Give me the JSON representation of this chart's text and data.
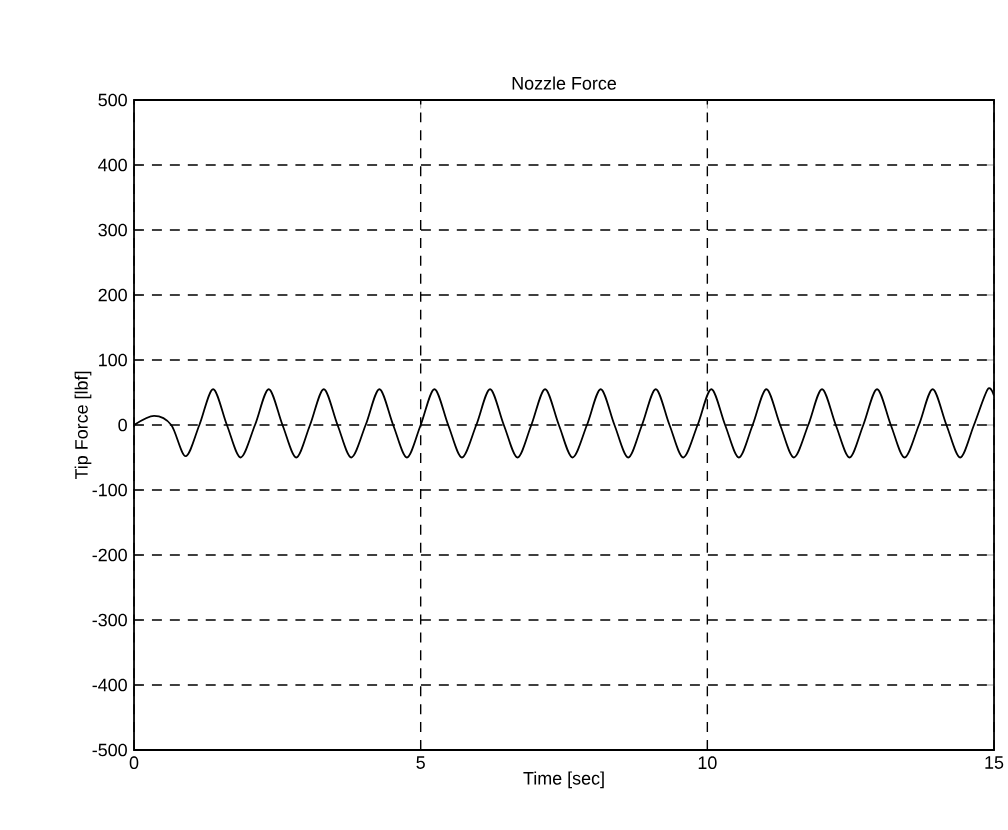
{
  "chart_data": {
    "type": "line",
    "title": "Nozzle Force",
    "xlabel": "Time [sec]",
    "ylabel": "Tip Force [lbf]",
    "xlim": [
      0,
      15
    ],
    "xticks": [
      0,
      5,
      10,
      15
    ],
    "ylim": [
      -500,
      500
    ],
    "yticks": [
      -500,
      -400,
      -300,
      -200,
      -100,
      0,
      100,
      200,
      300,
      400,
      500
    ],
    "grid": true,
    "line_style": "solid",
    "marker": "none",
    "series": [
      {
        "color": "#000000",
        "x": [
          0,
          0.35,
          0.65,
          0.9,
          1.14,
          1.38,
          1.62,
          1.86,
          2.11,
          2.35,
          2.59,
          2.83,
          3.07,
          3.31,
          3.55,
          3.79,
          4.04,
          4.28,
          4.52,
          4.76,
          5.0,
          5.24,
          5.48,
          5.72,
          5.97,
          6.21,
          6.45,
          6.69,
          6.93,
          7.17,
          7.41,
          7.65,
          7.9,
          8.14,
          8.38,
          8.62,
          8.86,
          9.1,
          9.34,
          9.58,
          9.83,
          10.07,
          10.31,
          10.55,
          10.79,
          11.03,
          11.27,
          11.51,
          11.76,
          12.0,
          12.24,
          12.48,
          12.72,
          12.96,
          13.2,
          13.44,
          13.69,
          13.93,
          14.17,
          14.41,
          14.65,
          14.89,
          15
        ],
        "values": [
          0,
          14,
          0,
          -48,
          0,
          55,
          0,
          -50,
          0,
          55,
          0,
          -50,
          0,
          55,
          0,
          -50,
          0,
          55,
          0,
          -50,
          0,
          55,
          0,
          -50,
          0,
          55,
          0,
          -50,
          0,
          55,
          0,
          -50,
          0,
          55,
          0,
          -50,
          0,
          55,
          0,
          -50,
          0,
          55,
          0,
          -50,
          0,
          55,
          0,
          -50,
          0,
          55,
          0,
          -50,
          0,
          55,
          0,
          -50,
          0,
          55,
          0,
          -50,
          0,
          55,
          45
        ]
      }
    ]
  }
}
